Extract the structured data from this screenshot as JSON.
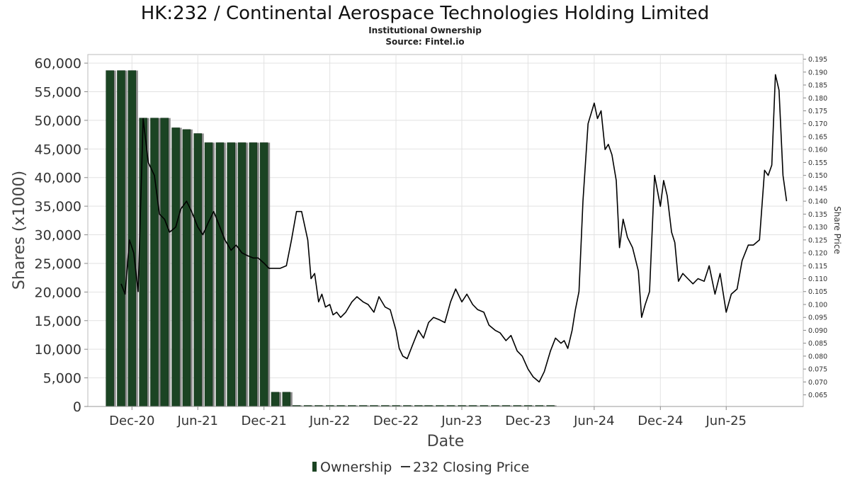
{
  "chart_data": {
    "type": "bar+line",
    "title": "HK:232 / Continental Aerospace Technologies Holding Limited",
    "subtitle_lines": [
      "Institutional Ownership",
      "Source: Fintel.io"
    ],
    "xlabel": "Date",
    "ylabel_left": "Shares (x1000)",
    "ylabel_right": "Share Price",
    "x_range": [
      "2020-08-01",
      "2025-12-31"
    ],
    "x_ticks": [
      {
        "date": "2020-12-01",
        "label": "Dec-20"
      },
      {
        "date": "2021-06-01",
        "label": "Jun-21"
      },
      {
        "date": "2021-12-01",
        "label": "Dec-21"
      },
      {
        "date": "2022-06-01",
        "label": "Jun-22"
      },
      {
        "date": "2022-12-01",
        "label": "Dec-22"
      },
      {
        "date": "2023-06-01",
        "label": "Jun-23"
      },
      {
        "date": "2023-12-01",
        "label": "Dec-23"
      },
      {
        "date": "2024-06-01",
        "label": "Jun-24"
      },
      {
        "date": "2024-12-01",
        "label": "Dec-24"
      },
      {
        "date": "2025-06-01",
        "label": "Jun-25"
      }
    ],
    "y_left": {
      "min": 0,
      "max": 61500,
      "ticks": [
        0,
        5000,
        10000,
        15000,
        20000,
        25000,
        30000,
        35000,
        40000,
        45000,
        50000,
        55000,
        60000
      ],
      "tick_labels": [
        "0",
        "5,000",
        "10,000",
        "15,000",
        "20,000",
        "25,000",
        "30,000",
        "35,000",
        "40,000",
        "45,000",
        "50,000",
        "55,000",
        "60,000"
      ]
    },
    "y_right": {
      "min": 0.0605,
      "max": 0.1968,
      "ticks": [
        0.065,
        0.07,
        0.075,
        0.08,
        0.085,
        0.09,
        0.095,
        0.1,
        0.105,
        0.11,
        0.115,
        0.12,
        0.125,
        0.13,
        0.135,
        0.14,
        0.145,
        0.15,
        0.155,
        0.16,
        0.165,
        0.17,
        0.175,
        0.18,
        0.185,
        0.19,
        0.195
      ],
      "tick_labels": [
        "0.065",
        "0.070",
        "0.075",
        "0.080",
        "0.085",
        "0.090",
        "0.095",
        "0.100",
        "0.105",
        "0.110",
        "0.115",
        "0.120",
        "0.125",
        "0.130",
        "0.135",
        "0.140",
        "0.145",
        "0.150",
        "0.155",
        "0.160",
        "0.165",
        "0.170",
        "0.175",
        "0.180",
        "0.185",
        "0.190",
        "0.195"
      ]
    },
    "grid": true,
    "legend_position": "bottom-center",
    "series": [
      {
        "name": "Ownership",
        "type": "bar",
        "color": "#1b4423",
        "points": [
          [
            "2020-10-01",
            58700
          ],
          [
            "2020-11-01",
            58700
          ],
          [
            "2020-12-01",
            58700
          ],
          [
            "2021-01-01",
            50400
          ],
          [
            "2021-02-01",
            50400
          ],
          [
            "2021-03-01",
            50400
          ],
          [
            "2021-04-01",
            48700
          ],
          [
            "2021-05-01",
            48400
          ],
          [
            "2021-06-01",
            47700
          ],
          [
            "2021-07-01",
            46100
          ],
          [
            "2021-08-01",
            46100
          ],
          [
            "2021-09-01",
            46100
          ],
          [
            "2021-10-01",
            46100
          ],
          [
            "2021-11-01",
            46100
          ],
          [
            "2021-12-01",
            46100
          ],
          [
            "2022-01-01",
            2500
          ],
          [
            "2022-02-01",
            2500
          ],
          [
            "2022-03-01",
            150
          ],
          [
            "2022-04-01",
            150
          ],
          [
            "2022-05-01",
            150
          ],
          [
            "2022-06-01",
            150
          ],
          [
            "2022-07-01",
            150
          ],
          [
            "2022-08-01",
            150
          ],
          [
            "2022-09-01",
            150
          ],
          [
            "2022-10-01",
            150
          ],
          [
            "2022-11-01",
            150
          ],
          [
            "2022-12-01",
            150
          ],
          [
            "2023-01-01",
            150
          ],
          [
            "2023-02-01",
            150
          ],
          [
            "2023-03-01",
            150
          ],
          [
            "2023-04-01",
            150
          ],
          [
            "2023-05-01",
            150
          ],
          [
            "2023-06-01",
            150
          ],
          [
            "2023-07-01",
            150
          ],
          [
            "2023-08-01",
            150
          ],
          [
            "2023-09-01",
            150
          ],
          [
            "2023-10-01",
            150
          ],
          [
            "2023-11-01",
            150
          ],
          [
            "2023-12-01",
            150
          ],
          [
            "2024-01-01",
            150
          ],
          [
            "2024-02-01",
            150
          ]
        ]
      },
      {
        "name": "232 Closing Price",
        "type": "line",
        "color": "#000000",
        "points": [
          [
            "2020-11-01",
            0.108
          ],
          [
            "2020-11-12",
            0.104
          ],
          [
            "2020-11-24",
            0.125
          ],
          [
            "2020-12-06",
            0.12
          ],
          [
            "2020-12-18",
            0.105
          ],
          [
            "2021-01-01",
            0.172
          ],
          [
            "2021-01-15",
            0.155
          ],
          [
            "2021-02-01",
            0.15
          ],
          [
            "2021-02-15",
            0.135
          ],
          [
            "2021-03-01",
            0.133
          ],
          [
            "2021-03-15",
            0.128
          ],
          [
            "2021-04-01",
            0.13
          ],
          [
            "2021-04-15",
            0.137
          ],
          [
            "2021-05-01",
            0.14
          ],
          [
            "2021-05-15",
            0.136
          ],
          [
            "2021-06-01",
            0.13
          ],
          [
            "2021-06-15",
            0.127
          ],
          [
            "2021-07-01",
            0.132
          ],
          [
            "2021-07-15",
            0.136
          ],
          [
            "2021-08-01",
            0.13
          ],
          [
            "2021-08-15",
            0.125
          ],
          [
            "2021-09-01",
            0.121
          ],
          [
            "2021-09-15",
            0.123
          ],
          [
            "2021-10-01",
            0.12
          ],
          [
            "2021-10-15",
            0.119
          ],
          [
            "2021-11-01",
            0.118
          ],
          [
            "2021-11-15",
            0.118
          ],
          [
            "2021-12-01",
            0.116
          ],
          [
            "2021-12-15",
            0.114
          ],
          [
            "2022-01-01",
            0.114
          ],
          [
            "2022-01-15",
            0.114
          ],
          [
            "2022-02-01",
            0.115
          ],
          [
            "2022-02-15",
            0.125
          ],
          [
            "2022-03-01",
            0.136
          ],
          [
            "2022-03-15",
            0.136
          ],
          [
            "2022-04-01",
            0.125
          ],
          [
            "2022-04-10",
            0.11
          ],
          [
            "2022-04-20",
            0.112
          ],
          [
            "2022-05-01",
            0.101
          ],
          [
            "2022-05-10",
            0.104
          ],
          [
            "2022-05-20",
            0.099
          ],
          [
            "2022-06-01",
            0.1
          ],
          [
            "2022-06-10",
            0.096
          ],
          [
            "2022-06-20",
            0.097
          ],
          [
            "2022-07-01",
            0.095
          ],
          [
            "2022-07-15",
            0.097
          ],
          [
            "2022-08-01",
            0.101
          ],
          [
            "2022-08-15",
            0.103
          ],
          [
            "2022-09-01",
            0.101
          ],
          [
            "2022-09-15",
            0.1
          ],
          [
            "2022-10-01",
            0.097
          ],
          [
            "2022-10-15",
            0.103
          ],
          [
            "2022-11-01",
            0.099
          ],
          [
            "2022-11-15",
            0.098
          ],
          [
            "2022-12-01",
            0.09
          ],
          [
            "2022-12-10",
            0.083
          ],
          [
            "2022-12-20",
            0.08
          ],
          [
            "2023-01-01",
            0.079
          ],
          [
            "2023-01-15",
            0.084
          ],
          [
            "2023-02-01",
            0.09
          ],
          [
            "2023-02-15",
            0.087
          ],
          [
            "2023-03-01",
            0.093
          ],
          [
            "2023-03-15",
            0.095
          ],
          [
            "2023-04-01",
            0.094
          ],
          [
            "2023-04-15",
            0.093
          ],
          [
            "2023-05-01",
            0.101
          ],
          [
            "2023-05-15",
            0.106
          ],
          [
            "2023-06-01",
            0.101
          ],
          [
            "2023-06-15",
            0.104
          ],
          [
            "2023-07-01",
            0.1
          ],
          [
            "2023-07-15",
            0.098
          ],
          [
            "2023-08-01",
            0.097
          ],
          [
            "2023-08-15",
            0.092
          ],
          [
            "2023-09-01",
            0.09
          ],
          [
            "2023-09-15",
            0.089
          ],
          [
            "2023-10-01",
            0.086
          ],
          [
            "2023-10-15",
            0.088
          ],
          [
            "2023-11-01",
            0.082
          ],
          [
            "2023-11-15",
            0.08
          ],
          [
            "2023-12-01",
            0.075
          ],
          [
            "2023-12-15",
            0.072
          ],
          [
            "2024-01-01",
            0.07
          ],
          [
            "2024-01-15",
            0.074
          ],
          [
            "2024-02-01",
            0.082
          ],
          [
            "2024-02-15",
            0.087
          ],
          [
            "2024-03-01",
            0.085
          ],
          [
            "2024-03-10",
            0.086
          ],
          [
            "2024-03-20",
            0.083
          ],
          [
            "2024-04-01",
            0.09
          ],
          [
            "2024-04-10",
            0.098
          ],
          [
            "2024-04-20",
            0.105
          ],
          [
            "2024-05-01",
            0.14
          ],
          [
            "2024-05-15",
            0.17
          ],
          [
            "2024-06-01",
            0.178
          ],
          [
            "2024-06-10",
            0.172
          ],
          [
            "2024-06-20",
            0.175
          ],
          [
            "2024-07-01",
            0.16
          ],
          [
            "2024-07-10",
            0.162
          ],
          [
            "2024-07-20",
            0.158
          ],
          [
            "2024-08-01",
            0.148
          ],
          [
            "2024-08-10",
            0.122
          ],
          [
            "2024-08-20",
            0.133
          ],
          [
            "2024-09-01",
            0.126
          ],
          [
            "2024-09-15",
            0.122
          ],
          [
            "2024-10-01",
            0.113
          ],
          [
            "2024-10-10",
            0.095
          ],
          [
            "2024-10-20",
            0.1
          ],
          [
            "2024-11-01",
            0.105
          ],
          [
            "2024-11-15",
            0.15
          ],
          [
            "2024-12-01",
            0.138
          ],
          [
            "2024-12-10",
            0.148
          ],
          [
            "2024-12-20",
            0.142
          ],
          [
            "2025-01-01",
            0.128
          ],
          [
            "2025-01-10",
            0.124
          ],
          [
            "2025-01-20",
            0.109
          ],
          [
            "2025-02-01",
            0.112
          ],
          [
            "2025-02-15",
            0.11
          ],
          [
            "2025-03-01",
            0.108
          ],
          [
            "2025-03-15",
            0.11
          ],
          [
            "2025-04-01",
            0.109
          ],
          [
            "2025-04-15",
            0.115
          ],
          [
            "2025-05-01",
            0.104
          ],
          [
            "2025-05-15",
            0.112
          ],
          [
            "2025-06-01",
            0.097
          ],
          [
            "2025-06-15",
            0.104
          ],
          [
            "2025-07-01",
            0.106
          ],
          [
            "2025-07-15",
            0.117
          ],
          [
            "2025-08-01",
            0.123
          ],
          [
            "2025-08-15",
            0.123
          ],
          [
            "2025-09-01",
            0.125
          ],
          [
            "2025-09-15",
            0.152
          ],
          [
            "2025-09-25",
            0.15
          ],
          [
            "2025-10-05",
            0.154
          ],
          [
            "2025-10-15",
            0.189
          ],
          [
            "2025-10-25",
            0.183
          ],
          [
            "2025-11-05",
            0.15
          ],
          [
            "2025-11-15",
            0.14
          ]
        ]
      }
    ]
  }
}
